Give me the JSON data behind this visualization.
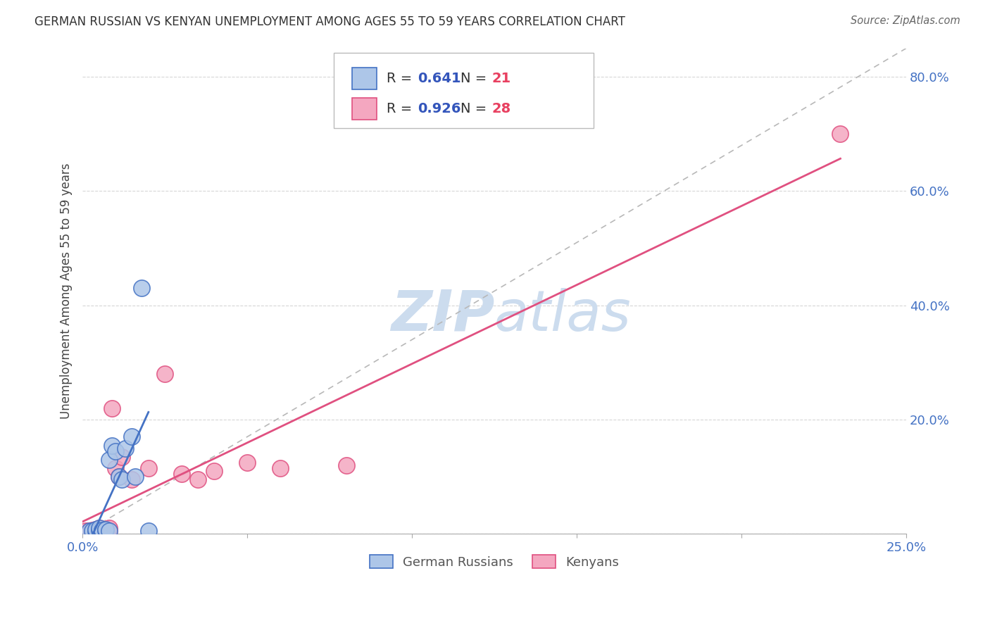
{
  "title": "GERMAN RUSSIAN VS KENYAN UNEMPLOYMENT AMONG AGES 55 TO 59 YEARS CORRELATION CHART",
  "source": "Source: ZipAtlas.com",
  "ylabel_label": "Unemployment Among Ages 55 to 59 years",
  "xlim": [
    0.0,
    0.25
  ],
  "ylim": [
    0.0,
    0.85
  ],
  "x_ticks": [
    0.0,
    0.05,
    0.1,
    0.15,
    0.2,
    0.25
  ],
  "y_ticks": [
    0.0,
    0.2,
    0.4,
    0.6,
    0.8
  ],
  "german_russian_R": 0.641,
  "german_russian_N": 21,
  "kenyan_R": 0.926,
  "kenyan_N": 28,
  "german_russian_color": "#adc6e8",
  "german_russian_line_color": "#4472c4",
  "kenyan_color": "#f4a7c0",
  "kenyan_line_color": "#e05080",
  "diagonal_color": "#b8b8b8",
  "watermark_color": "#ccdcee",
  "legend_R_color": "#3355bb",
  "legend_N_color": "#e84060",
  "tick_color": "#4472c4",
  "german_russian_x": [
    0.002,
    0.003,
    0.004,
    0.004,
    0.005,
    0.005,
    0.006,
    0.006,
    0.007,
    0.007,
    0.008,
    0.008,
    0.009,
    0.01,
    0.011,
    0.012,
    0.013,
    0.015,
    0.016,
    0.018,
    0.02
  ],
  "german_russian_y": [
    0.005,
    0.005,
    0.005,
    0.008,
    0.006,
    0.01,
    0.005,
    0.007,
    0.006,
    0.008,
    0.005,
    0.13,
    0.155,
    0.145,
    0.1,
    0.095,
    0.15,
    0.17,
    0.1,
    0.43,
    0.005
  ],
  "kenyan_x": [
    0.001,
    0.002,
    0.003,
    0.003,
    0.004,
    0.004,
    0.005,
    0.005,
    0.006,
    0.006,
    0.007,
    0.007,
    0.008,
    0.008,
    0.009,
    0.01,
    0.011,
    0.012,
    0.015,
    0.02,
    0.025,
    0.03,
    0.035,
    0.04,
    0.05,
    0.06,
    0.08,
    0.23
  ],
  "kenyan_y": [
    0.005,
    0.005,
    0.005,
    0.007,
    0.005,
    0.008,
    0.006,
    0.01,
    0.005,
    0.007,
    0.006,
    0.008,
    0.006,
    0.01,
    0.22,
    0.115,
    0.1,
    0.135,
    0.095,
    0.115,
    0.28,
    0.105,
    0.095,
    0.11,
    0.125,
    0.115,
    0.12,
    0.7
  ]
}
